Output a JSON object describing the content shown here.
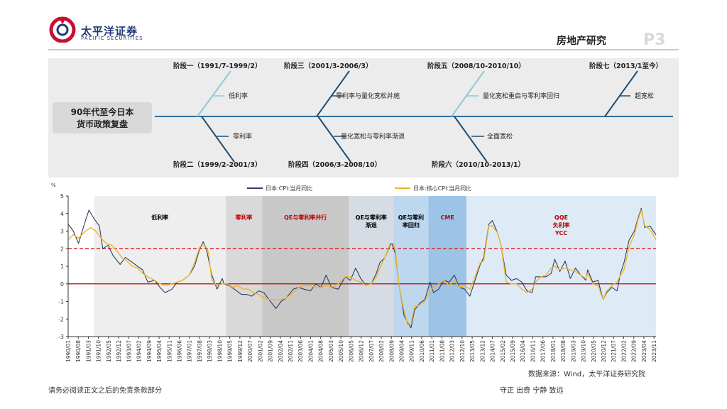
{
  "header": {
    "company_cn": "太平洋证券",
    "company_en": "PACIFIC SECURITIES",
    "section_title": "房地产研究",
    "page": "P3"
  },
  "fishbone": {
    "core": "90年代至今日本\n货币政策复盘",
    "core_line1": "90年代至今日本",
    "core_line2": "货币政策复盘",
    "stages": [
      {
        "label": "阶段一（1991/7-1999/2）",
        "policy": "低利率"
      },
      {
        "label": "阶段二（1999/2-2001/3）",
        "policy": "零利率"
      },
      {
        "label": "阶段三（2001/3-2006/3）",
        "policy": "零利率与量化宽松并施"
      },
      {
        "label": "阶段四（2006/3-2008/10）",
        "policy": "量化宽松与零利率渐退"
      },
      {
        "label": "阶段五（2008/10-2010/10）",
        "policy": "量化宽松重启与零利率回归"
      },
      {
        "label": "阶段六（2010/10-2013/1）",
        "policy": "全面宽松"
      },
      {
        "label": "阶段七（2013/1至今）",
        "policy": "超宽松"
      }
    ],
    "colors": {
      "spine": "#2e6e9e",
      "branch_light": "#8fcad6",
      "branch_dark": "#1f4f75"
    }
  },
  "chart_data": {
    "type": "line",
    "ylabel": "%",
    "ylim": [
      -3,
      5
    ],
    "yticks": [
      "5",
      "4",
      "3",
      "2",
      "1",
      "0",
      "-1",
      "-2",
      "-3"
    ],
    "x_tick_labels": [
      "1990/01",
      "1990/08",
      "1991/03",
      "1991/10",
      "1992/05",
      "1992/12",
      "1993/07",
      "1994/02",
      "1994/09",
      "1995/04",
      "1995/11",
      "1996/06",
      "1997/01",
      "1997/08",
      "1998/03",
      "1998/10",
      "1999/05",
      "1999/12",
      "2000/07",
      "2001/02",
      "2001/09",
      "2002/04",
      "2002/11",
      "2003/06",
      "2004/01",
      "2004/08",
      "2005/03",
      "2005/10",
      "2006/05",
      "2006/12",
      "2007/07",
      "2008/02",
      "2008/09",
      "2009/04",
      "2009/11",
      "2010/06",
      "2011/01",
      "2011/08",
      "2012/03",
      "2012/10",
      "2013/05",
      "2013/12",
      "2014/07",
      "2015/02",
      "2015/09",
      "2016/04",
      "2016/11",
      "2017/06",
      "2018/01",
      "2018/08",
      "2019/03",
      "2019/10",
      "2020/05",
      "2020/12",
      "2021/07",
      "2022/02",
      "2022/09",
      "2023/04",
      "2023/11"
    ],
    "reference_lines": [
      {
        "value": 2,
        "style": "dashed",
        "color": "#d62728"
      },
      {
        "value": 0,
        "style": "solid",
        "color": "#c00000"
      }
    ],
    "series": [
      {
        "name": "日本:CPI:当月同比",
        "color": "#2f3f5f",
        "points": [
          [
            1990.0,
            3.4
          ],
          [
            1990.3,
            3.0
          ],
          [
            1990.6,
            2.3
          ],
          [
            1991.0,
            3.6
          ],
          [
            1991.2,
            4.2
          ],
          [
            1991.5,
            3.7
          ],
          [
            1991.8,
            3.3
          ],
          [
            1992.0,
            2.0
          ],
          [
            1992.3,
            2.2
          ],
          [
            1992.6,
            1.6
          ],
          [
            1993.0,
            1.1
          ],
          [
            1993.3,
            1.5
          ],
          [
            1993.6,
            1.3
          ],
          [
            1994.0,
            1.0
          ],
          [
            1994.3,
            0.8
          ],
          [
            1994.6,
            0.1
          ],
          [
            1995.0,
            0.2
          ],
          [
            1995.3,
            -0.2
          ],
          [
            1995.6,
            -0.5
          ],
          [
            1996.0,
            -0.3
          ],
          [
            1996.3,
            0.1
          ],
          [
            1996.6,
            0.2
          ],
          [
            1997.0,
            0.5
          ],
          [
            1997.3,
            1.0
          ],
          [
            1997.6,
            2.0
          ],
          [
            1997.8,
            2.4
          ],
          [
            1998.0,
            1.9
          ],
          [
            1998.3,
            0.5
          ],
          [
            1998.6,
            -0.3
          ],
          [
            1998.9,
            0.3
          ],
          [
            1999.0,
            0.0
          ],
          [
            1999.3,
            -0.1
          ],
          [
            1999.6,
            -0.3
          ],
          [
            2000.0,
            -0.6
          ],
          [
            2000.3,
            -0.6
          ],
          [
            2000.6,
            -0.7
          ],
          [
            2001.0,
            -0.4
          ],
          [
            2001.3,
            -0.5
          ],
          [
            2001.6,
            -0.9
          ],
          [
            2002.0,
            -1.4
          ],
          [
            2002.3,
            -1.0
          ],
          [
            2002.6,
            -0.8
          ],
          [
            2003.0,
            -0.3
          ],
          [
            2003.3,
            -0.2
          ],
          [
            2003.6,
            -0.3
          ],
          [
            2004.0,
            -0.4
          ],
          [
            2004.3,
            0.0
          ],
          [
            2004.6,
            -0.2
          ],
          [
            2004.9,
            0.5
          ],
          [
            2005.2,
            -0.2
          ],
          [
            2005.6,
            -0.3
          ],
          [
            2006.0,
            0.4
          ],
          [
            2006.3,
            0.2
          ],
          [
            2006.6,
            0.9
          ],
          [
            2006.9,
            0.3
          ],
          [
            2007.2,
            -0.1
          ],
          [
            2007.5,
            0.0
          ],
          [
            2007.8,
            0.6
          ],
          [
            2008.0,
            1.2
          ],
          [
            2008.3,
            1.5
          ],
          [
            2008.6,
            2.2
          ],
          [
            2008.7,
            2.3
          ],
          [
            2008.9,
            1.7
          ],
          [
            2009.1,
            0.0
          ],
          [
            2009.4,
            -1.8
          ],
          [
            2009.6,
            -2.2
          ],
          [
            2009.8,
            -2.5
          ],
          [
            2010.0,
            -1.5
          ],
          [
            2010.3,
            -1.1
          ],
          [
            2010.6,
            -0.9
          ],
          [
            2010.9,
            0.1
          ],
          [
            2011.1,
            -0.5
          ],
          [
            2011.4,
            -0.3
          ],
          [
            2011.7,
            0.2
          ],
          [
            2012.0,
            0.1
          ],
          [
            2012.3,
            0.5
          ],
          [
            2012.6,
            -0.2
          ],
          [
            2012.9,
            -0.3
          ],
          [
            2013.2,
            -0.7
          ],
          [
            2013.5,
            0.2
          ],
          [
            2013.8,
            1.1
          ],
          [
            2014.0,
            1.5
          ],
          [
            2014.3,
            3.4
          ],
          [
            2014.5,
            3.6
          ],
          [
            2014.8,
            2.9
          ],
          [
            2015.0,
            2.2
          ],
          [
            2015.3,
            0.5
          ],
          [
            2015.6,
            0.2
          ],
          [
            2015.9,
            0.3
          ],
          [
            2016.2,
            0.1
          ],
          [
            2016.5,
            -0.4
          ],
          [
            2016.8,
            -0.5
          ],
          [
            2017.0,
            0.4
          ],
          [
            2017.3,
            0.4
          ],
          [
            2017.6,
            0.4
          ],
          [
            2017.9,
            0.6
          ],
          [
            2018.1,
            1.4
          ],
          [
            2018.4,
            0.7
          ],
          [
            2018.7,
            1.3
          ],
          [
            2019.0,
            0.3
          ],
          [
            2019.3,
            0.9
          ],
          [
            2019.6,
            0.5
          ],
          [
            2019.9,
            0.2
          ],
          [
            2020.0,
            0.8
          ],
          [
            2020.3,
            0.1
          ],
          [
            2020.6,
            0.2
          ],
          [
            2020.9,
            -0.9
          ],
          [
            2021.1,
            -0.5
          ],
          [
            2021.4,
            -0.2
          ],
          [
            2021.7,
            -0.4
          ],
          [
            2021.9,
            0.6
          ],
          [
            2022.1,
            1.2
          ],
          [
            2022.4,
            2.5
          ],
          [
            2022.7,
            3.0
          ],
          [
            2022.9,
            3.7
          ],
          [
            2023.1,
            4.3
          ],
          [
            2023.3,
            3.2
          ],
          [
            2023.6,
            3.3
          ],
          [
            2023.8,
            3.0
          ],
          [
            2023.95,
            2.8
          ]
        ]
      },
      {
        "name": "日本:核心CPI:当月同比",
        "color": "#f0b429",
        "points": [
          [
            1990.0,
            2.5
          ],
          [
            1990.3,
            2.8
          ],
          [
            1990.6,
            2.6
          ],
          [
            1991.0,
            3.0
          ],
          [
            1991.3,
            3.2
          ],
          [
            1991.6,
            3.0
          ],
          [
            1991.9,
            2.6
          ],
          [
            1992.2,
            2.3
          ],
          [
            1992.5,
            2.2
          ],
          [
            1992.8,
            1.9
          ],
          [
            1993.1,
            1.5
          ],
          [
            1993.4,
            1.3
          ],
          [
            1993.7,
            1.0
          ],
          [
            1994.0,
            0.9
          ],
          [
            1994.3,
            0.6
          ],
          [
            1994.6,
            0.4
          ],
          [
            1995.0,
            0.2
          ],
          [
            1995.3,
            0.0
          ],
          [
            1995.6,
            -0.1
          ],
          [
            1996.0,
            0.0
          ],
          [
            1996.3,
            0.1
          ],
          [
            1996.6,
            0.2
          ],
          [
            1997.0,
            0.5
          ],
          [
            1997.3,
            1.2
          ],
          [
            1997.6,
            2.1
          ],
          [
            1997.9,
            2.2
          ],
          [
            1998.1,
            1.8
          ],
          [
            1998.3,
            0.2
          ],
          [
            1998.6,
            -0.1
          ],
          [
            1998.9,
            0.0
          ],
          [
            1999.2,
            0.0
          ],
          [
            1999.5,
            -0.2
          ],
          [
            1999.8,
            -0.1
          ],
          [
            2000.1,
            -0.3
          ],
          [
            2000.4,
            -0.3
          ],
          [
            2000.7,
            -0.5
          ],
          [
            2001.0,
            -0.6
          ],
          [
            2001.3,
            -0.8
          ],
          [
            2001.6,
            -0.9
          ],
          [
            2002.0,
            -0.9
          ],
          [
            2002.3,
            -0.9
          ],
          [
            2002.6,
            -0.8
          ],
          [
            2003.0,
            -0.5
          ],
          [
            2003.3,
            -0.2
          ],
          [
            2003.6,
            -0.1
          ],
          [
            2004.0,
            -0.1
          ],
          [
            2004.3,
            -0.2
          ],
          [
            2004.6,
            -0.2
          ],
          [
            2004.9,
            -0.1
          ],
          [
            2005.2,
            -0.2
          ],
          [
            2005.6,
            0.0
          ],
          [
            2006.0,
            0.4
          ],
          [
            2006.3,
            0.4
          ],
          [
            2006.6,
            0.2
          ],
          [
            2006.9,
            0.1
          ],
          [
            2007.2,
            -0.1
          ],
          [
            2007.5,
            0.0
          ],
          [
            2007.8,
            0.4
          ],
          [
            2008.0,
            0.9
          ],
          [
            2008.3,
            1.5
          ],
          [
            2008.6,
            2.3
          ],
          [
            2008.8,
            2.3
          ],
          [
            2008.9,
            1.9
          ],
          [
            2009.1,
            0.0
          ],
          [
            2009.3,
            -1.1
          ],
          [
            2009.6,
            -2.3
          ],
          [
            2009.8,
            -2.3
          ],
          [
            2010.0,
            -1.3
          ],
          [
            2010.3,
            -1.2
          ],
          [
            2010.6,
            -1.0
          ],
          [
            2010.9,
            -0.4
          ],
          [
            2011.1,
            -0.2
          ],
          [
            2011.4,
            0.0
          ],
          [
            2011.7,
            0.2
          ],
          [
            2012.0,
            -0.1
          ],
          [
            2012.3,
            0.2
          ],
          [
            2012.6,
            -0.2
          ],
          [
            2012.9,
            -0.1
          ],
          [
            2013.2,
            -0.3
          ],
          [
            2013.5,
            0.4
          ],
          [
            2013.8,
            1.2
          ],
          [
            2014.0,
            1.3
          ],
          [
            2014.3,
            3.3
          ],
          [
            2014.5,
            3.3
          ],
          [
            2014.8,
            2.9
          ],
          [
            2015.0,
            2.2
          ],
          [
            2015.3,
            0.1
          ],
          [
            2015.6,
            0.0
          ],
          [
            2015.9,
            0.0
          ],
          [
            2016.2,
            -0.3
          ],
          [
            2016.5,
            -0.5
          ],
          [
            2016.8,
            -0.3
          ],
          [
            2017.0,
            0.1
          ],
          [
            2017.3,
            0.4
          ],
          [
            2017.6,
            0.5
          ],
          [
            2017.9,
            0.9
          ],
          [
            2018.1,
            1.0
          ],
          [
            2018.4,
            0.8
          ],
          [
            2018.7,
            0.9
          ],
          [
            2019.0,
            0.8
          ],
          [
            2019.3,
            0.7
          ],
          [
            2019.6,
            0.5
          ],
          [
            2019.9,
            0.3
          ],
          [
            2020.0,
            0.6
          ],
          [
            2020.3,
            0.0
          ],
          [
            2020.6,
            -0.1
          ],
          [
            2020.9,
            -0.9
          ],
          [
            2021.1,
            -0.4
          ],
          [
            2021.4,
            -0.1
          ],
          [
            2021.7,
            0.1
          ],
          [
            2021.9,
            0.5
          ],
          [
            2022.1,
            0.8
          ],
          [
            2022.4,
            2.1
          ],
          [
            2022.7,
            2.8
          ],
          [
            2022.9,
            3.6
          ],
          [
            2023.1,
            4.2
          ],
          [
            2023.3,
            3.3
          ],
          [
            2023.6,
            3.1
          ],
          [
            2023.8,
            2.8
          ],
          [
            2023.95,
            2.5
          ]
        ]
      }
    ],
    "bands": [
      {
        "label": "低利率",
        "start": 1991.5,
        "end": 1999.1,
        "color": "#eeeeee",
        "text_color": "#000000"
      },
      {
        "label": "零利率",
        "start": 1999.1,
        "end": 2001.2,
        "color": "#d9d9d9",
        "text_color": "#c00000"
      },
      {
        "label": "QE与零利率并行",
        "start": 2001.2,
        "end": 2006.2,
        "color": "#c8c8c8",
        "text_color": "#c00000"
      },
      {
        "label": "QE与零利率\n渐退",
        "line1": "QE与零利率",
        "line2": "渐退",
        "start": 2006.2,
        "end": 2008.8,
        "color": "#d6dce4",
        "text_color": "#000000"
      },
      {
        "label": "QE与零利\n率回归",
        "line1": "QE与零利",
        "line2": "率回归",
        "start": 2008.8,
        "end": 2010.8,
        "color": "#bdd7ee",
        "text_color": "#000000"
      },
      {
        "label": "CME",
        "start": 2010.8,
        "end": 2013.0,
        "color": "#9dc3e6",
        "text_color": "#c00000"
      },
      {
        "label": "QQE\n负利率\nYCC",
        "line1": "QQE",
        "line2": "负利率",
        "line3": "YCC",
        "start": 2013.0,
        "end": 2023.95,
        "color": "#deebf7",
        "text_color": "#c00000"
      }
    ]
  },
  "source_note": "数据来源：Wind，太平洋证券研究院",
  "footer": {
    "disclaimer": "请务必阅读正文之后的免责条款部分",
    "motto": "守正  出奇  宁静  致远"
  }
}
